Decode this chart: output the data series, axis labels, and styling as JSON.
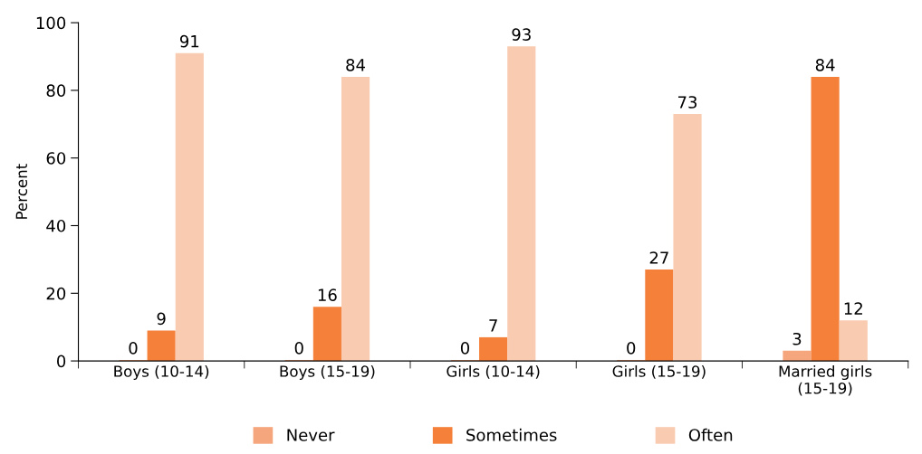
{
  "chart_data": {
    "type": "bar",
    "ylabel": "Percent",
    "categories": [
      "Boys (10-14)",
      "Boys (15-19)",
      "Girls (10-14)",
      "Girls (15-19)",
      "Married girls\n(15-19)"
    ],
    "series": [
      {
        "name": "Never",
        "color": "#f6a67c",
        "values": [
          0.3,
          0.3,
          0.3,
          0.3,
          3
        ],
        "value_labels": [
          "0",
          "0",
          "0",
          "0",
          "3"
        ]
      },
      {
        "name": "Sometimes",
        "color": "#f4803a",
        "values": [
          9,
          16,
          7,
          27,
          84
        ]
      },
      {
        "name": "Often",
        "color": "#f9cbb0",
        "values": [
          91,
          84,
          93,
          73,
          12
        ]
      }
    ],
    "ylim": [
      0,
      100
    ],
    "yticks": [
      0,
      20,
      40,
      60,
      80,
      100
    ],
    "grid": false,
    "legend": "bottom",
    "data_labels": true
  }
}
